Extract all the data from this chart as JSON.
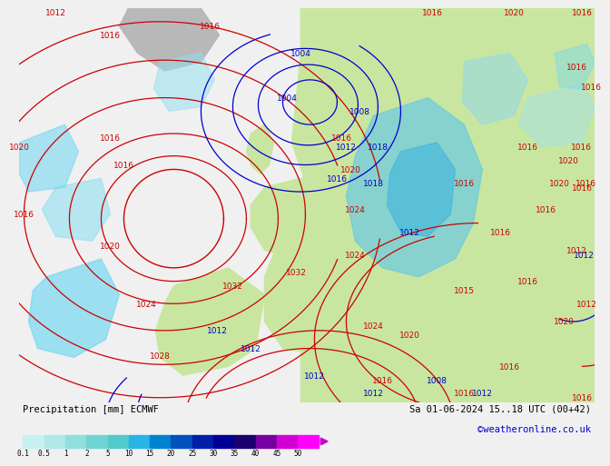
{
  "title_left": "Precipitation [mm] ECMWF",
  "title_right": "Sa 01-06-2024 15..18 UTC (00+42)",
  "credit": "©weatheronline.co.uk",
  "colorbar_labels": [
    "0.1",
    "0.5",
    "1",
    "2",
    "5",
    "10",
    "15",
    "20",
    "25",
    "30",
    "35",
    "40",
    "45",
    "50"
  ],
  "colorbar_colors": [
    "#c8f0f0",
    "#b0e8e8",
    "#90dede",
    "#70d4d4",
    "#50caca",
    "#28b4e6",
    "#0082d2",
    "#0050be",
    "#0020aa",
    "#000096",
    "#1a006e",
    "#7800a0",
    "#d200d2",
    "#ff00ff"
  ],
  "bg_color": "#f0f0f0",
  "ocean_color": "#d8d8d8",
  "land_color": "#c8e6a0",
  "text_color": "#000000",
  "credit_color": "#0000cc",
  "red_line_color": "#cc0000",
  "blue_line_color": "#0000cc"
}
